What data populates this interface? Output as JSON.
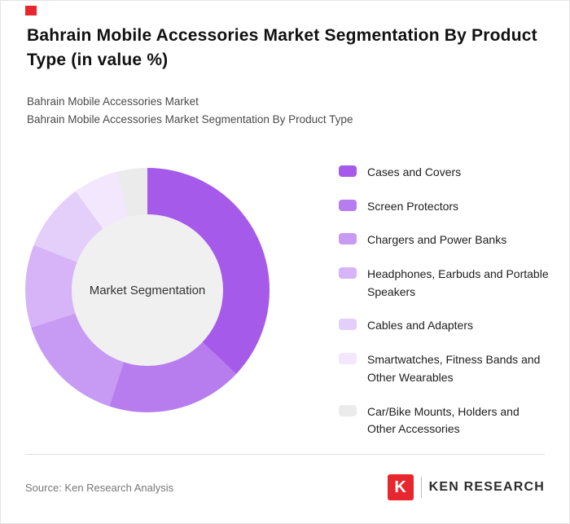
{
  "brand": {
    "accent_color": "#e8262d"
  },
  "header": {
    "title": "Bahrain Mobile Accessories Market Segmentation By Product Type (in value %)",
    "subtitle_line1": "Bahrain Mobile Accessories Market",
    "subtitle_line2": "Bahrain Mobile Accessories Market Segmentation By Product Type"
  },
  "chart_data": {
    "type": "pie",
    "donut": true,
    "center_label": "Market Segmentation",
    "legend_position": "right",
    "categories": [
      "Cases and Covers",
      "Screen Protectors",
      "Chargers and Power Banks",
      "Headphones, Earbuds and Portable Speakers",
      "Cables and Adapters",
      "Smartwatches, Fitness Bands and Other Wearables",
      "Car/Bike Mounts, Holders and Other Accessories"
    ],
    "values": [
      37,
      18,
      15,
      11,
      9,
      6,
      4
    ],
    "colors": [
      "#a55ae9",
      "#b77cee",
      "#c79af3",
      "#d6b4f7",
      "#e4cefa",
      "#f2e7fd",
      "#ebebeb"
    ],
    "hole_color": "#f0f0f0",
    "start_angle_deg": 0,
    "note": "values in percent, estimated from segment angles; no numeric labels shown in figure"
  },
  "footer": {
    "source": "Source: Ken Research Analysis",
    "logo": {
      "k": "K",
      "text": "KEN RESEARCH",
      "color": "#e8262d"
    }
  }
}
